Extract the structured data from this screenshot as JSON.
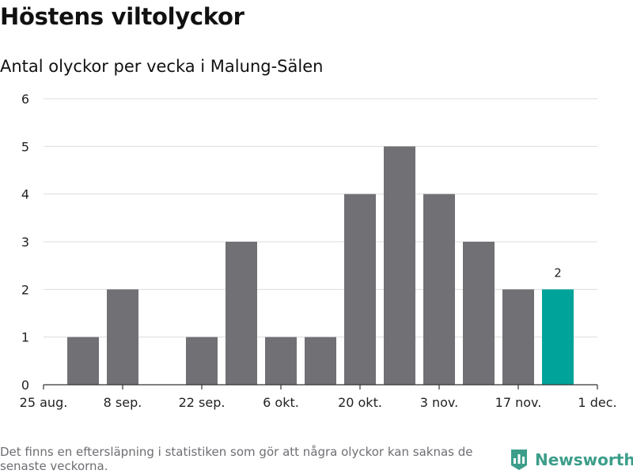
{
  "header": {
    "title": "Höstens viltolyckor",
    "subtitle": "Antal olyckor per vecka i Malung-Sälen"
  },
  "footer": {
    "note": "Det finns en eftersläpning i statistiken som gör att några olyckor kan saknas de senaste veckorna.",
    "brand": "Newsworthy"
  },
  "colors": {
    "bar": "#717075",
    "highlight": "#00a39a",
    "grid": "#dcdcdc",
    "axis": "#333333",
    "brand": "#3c9e8a"
  },
  "chart_data": {
    "type": "bar",
    "title": "Höstens viltolyckor",
    "subtitle": "Antal olyckor per vecka i Malung-Sälen",
    "xlabel": "",
    "ylabel": "",
    "ylim": [
      0,
      6
    ],
    "yticks": [
      0,
      1,
      2,
      3,
      4,
      5,
      6
    ],
    "x_tick_labels": [
      "25 aug.",
      "8 sep.",
      "22 sep.",
      "6 okt.",
      "20 okt.",
      "3 nov.",
      "17 nov.",
      "1 dec."
    ],
    "grid": true,
    "weeks": [
      "1 sep.",
      "8 sep.",
      "15 sep.",
      "22 sep.",
      "29 sep.",
      "6 okt.",
      "13 okt.",
      "20 okt.",
      "27 okt.",
      "3 nov.",
      "10 nov.",
      "17 nov.",
      "24 nov."
    ],
    "values": [
      1,
      2,
      0,
      1,
      3,
      1,
      1,
      4,
      5,
      4,
      3,
      2,
      2
    ],
    "highlight_index": 12,
    "annotations": [
      {
        "index": 12,
        "text": "2"
      }
    ]
  }
}
